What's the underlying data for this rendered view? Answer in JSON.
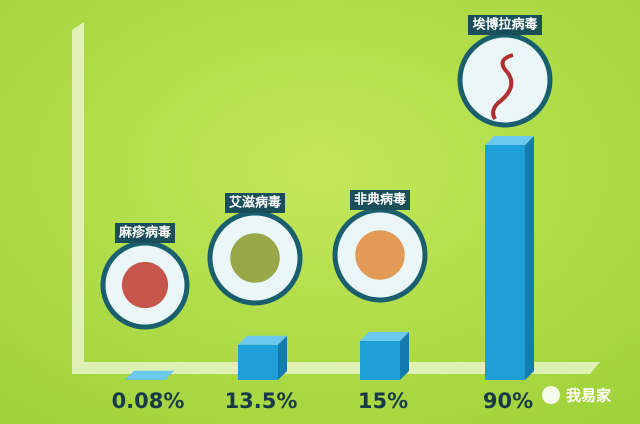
{
  "chart_data": {
    "type": "bar",
    "categories": [
      "麻疹病毒",
      "艾滋病毒",
      "非典病毒",
      "埃博拉病毒"
    ],
    "values": [
      0.08,
      13.5,
      15,
      90
    ],
    "value_labels": [
      "0.08%",
      "13.5%",
      "15%",
      "90%"
    ],
    "color": "#1e9fd8"
  },
  "watermark": "我易家"
}
